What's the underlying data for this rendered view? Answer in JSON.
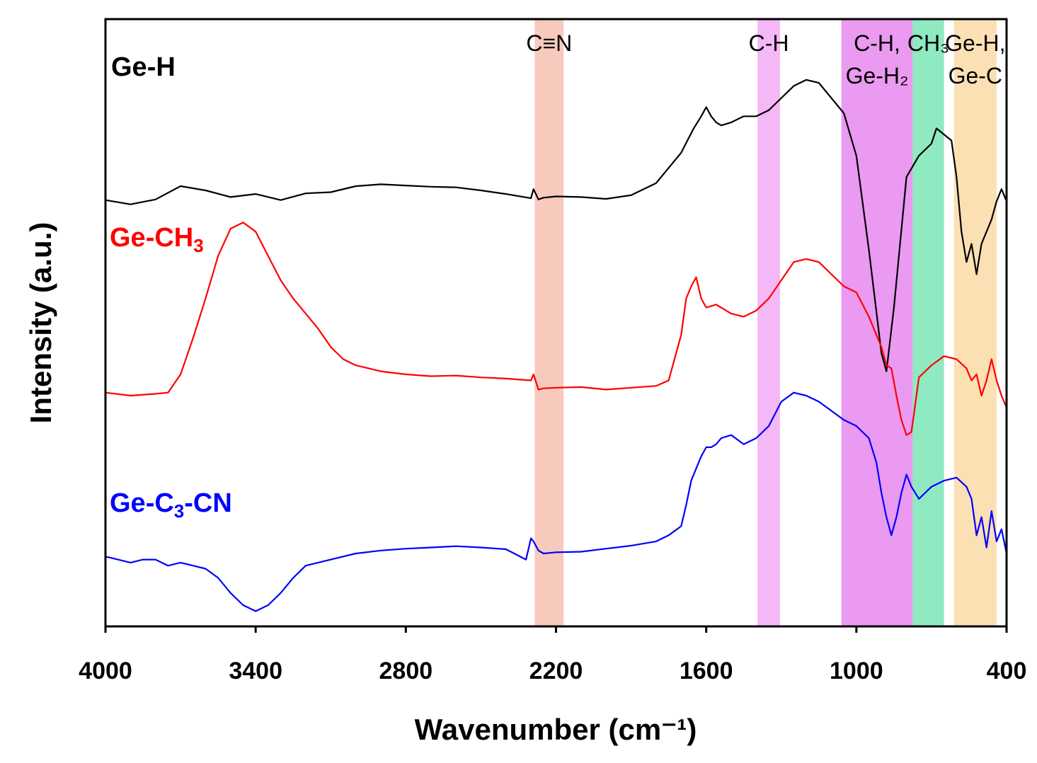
{
  "chart_data": {
    "type": "line",
    "xlabel": "Wavenumber (cm⁻¹)",
    "ylabel": "Intensity (a.u.)",
    "xlim": [
      4000,
      400
    ],
    "ylim": [
      0,
      100
    ],
    "x_ticks": [
      4000,
      3400,
      2800,
      2200,
      1600,
      1000,
      400
    ],
    "x_tick_labels": [
      "4000",
      "3400",
      "2800",
      "2200",
      "1600",
      "1000",
      "400"
    ],
    "bands": [
      {
        "name": "C≡N",
        "label_lines": [
          "C≡N"
        ],
        "x_range": [
          2285,
          2170
        ],
        "color": "#f8c9bd"
      },
      {
        "name": "C-H",
        "label_lines": [
          "C-H"
        ],
        "x_range": [
          1395,
          1305
        ],
        "color": "#f5b8f7"
      },
      {
        "name": "C-H, Ge-H2",
        "label_lines": [
          "C-H,",
          "Ge-H₂"
        ],
        "x_range": [
          1060,
          775
        ],
        "color": "#ea9af0"
      },
      {
        "name": "CH3",
        "label_lines": [
          "CH₃"
        ],
        "x_range": [
          775,
          650
        ],
        "color": "#8fe9c1"
      },
      {
        "name": "Ge-H, Ge-C",
        "label_lines": [
          "Ge-H,",
          "Ge-C"
        ],
        "x_range": [
          610,
          440
        ],
        "color": "#fbe0b4"
      }
    ],
    "series": [
      {
        "name": "Ge-H",
        "color": "#000000",
        "x": [
          4000,
          3900,
          3800,
          3700,
          3600,
          3500,
          3400,
          3300,
          3200,
          3100,
          3000,
          2900,
          2800,
          2700,
          2600,
          2500,
          2400,
          2300,
          2290,
          2270,
          2250,
          2200,
          2100,
          2000,
          1900,
          1800,
          1700,
          1650,
          1620,
          1600,
          1580,
          1560,
          1540,
          1500,
          1450,
          1400,
          1350,
          1300,
          1250,
          1200,
          1150,
          1100,
          1050,
          1000,
          950,
          900,
          880,
          850,
          800,
          750,
          700,
          680,
          650,
          620,
          600,
          580,
          560,
          540,
          520,
          500,
          480,
          460,
          440,
          420,
          400
        ],
        "values": [
          70.2,
          69.5,
          70.3,
          72.5,
          71.8,
          70.7,
          71.2,
          70.2,
          71.3,
          71.5,
          72.5,
          72.8,
          72.6,
          72.4,
          72.3,
          71.8,
          71.2,
          70.5,
          72.0,
          70.3,
          70.6,
          70.8,
          70.7,
          70.4,
          71.0,
          73.0,
          78.0,
          82.0,
          84.0,
          85.5,
          84.0,
          83.0,
          82.5,
          83.0,
          84.0,
          84.0,
          85.0,
          87.0,
          89.0,
          90.0,
          89.5,
          87.0,
          84.5,
          77.5,
          62.0,
          45.0,
          42.0,
          52.5,
          74.0,
          77.5,
          79.5,
          82.0,
          81.0,
          80.0,
          74.0,
          65.0,
          60.0,
          63.0,
          58.0,
          63.0,
          65.0,
          67.0,
          70.0,
          72.0,
          70.0
        ]
      },
      {
        "name": "Ge-CH3",
        "color": "#ff0000",
        "x": [
          4000,
          3900,
          3800,
          3750,
          3700,
          3650,
          3600,
          3550,
          3500,
          3450,
          3400,
          3350,
          3300,
          3250,
          3200,
          3150,
          3100,
          3050,
          3000,
          2900,
          2800,
          2700,
          2600,
          2500,
          2400,
          2300,
          2290,
          2270,
          2250,
          2200,
          2100,
          2000,
          1900,
          1800,
          1750,
          1700,
          1680,
          1660,
          1640,
          1620,
          1600,
          1560,
          1500,
          1450,
          1400,
          1350,
          1300,
          1250,
          1200,
          1150,
          1100,
          1050,
          1000,
          950,
          920,
          900,
          880,
          860,
          840,
          820,
          800,
          780,
          750,
          700,
          650,
          600,
          560,
          540,
          520,
          500,
          480,
          460,
          440,
          420,
          400
        ],
        "values": [
          38.5,
          38.0,
          38.3,
          38.5,
          41.5,
          47.5,
          54.0,
          61.0,
          65.5,
          66.5,
          65.0,
          61.0,
          57.0,
          54.0,
          51.5,
          49.0,
          46.0,
          44.0,
          43.0,
          42.0,
          41.5,
          41.2,
          41.3,
          41.0,
          40.8,
          40.5,
          41.5,
          39.0,
          39.2,
          39.3,
          39.4,
          39.0,
          39.3,
          39.6,
          40.5,
          48.0,
          54.0,
          56.0,
          57.5,
          54.0,
          52.5,
          53.0,
          51.5,
          51.0,
          52.0,
          54.0,
          57.0,
          60.0,
          60.5,
          60.0,
          58.0,
          56.0,
          55.0,
          51.0,
          48.0,
          46.0,
          43.0,
          42.5,
          38.0,
          34.0,
          31.5,
          32.0,
          41.0,
          43.0,
          44.5,
          44.0,
          42.5,
          40.5,
          41.5,
          38.0,
          40.5,
          44.0,
          40.5,
          38.0,
          36.0
        ]
      },
      {
        "name": "Ge-C3-CN",
        "color": "#0000ff",
        "x": [
          4000,
          3950,
          3900,
          3850,
          3800,
          3750,
          3700,
          3650,
          3600,
          3550,
          3500,
          3450,
          3400,
          3350,
          3300,
          3250,
          3200,
          3100,
          3000,
          2900,
          2800,
          2700,
          2600,
          2500,
          2400,
          2320,
          2300,
          2290,
          2270,
          2250,
          2200,
          2100,
          2000,
          1900,
          1800,
          1750,
          1700,
          1680,
          1660,
          1640,
          1620,
          1600,
          1580,
          1560,
          1540,
          1500,
          1450,
          1400,
          1350,
          1300,
          1250,
          1200,
          1150,
          1100,
          1050,
          1000,
          950,
          920,
          900,
          880,
          860,
          840,
          820,
          800,
          780,
          750,
          700,
          650,
          600,
          560,
          540,
          520,
          500,
          480,
          460,
          440,
          420,
          400
        ],
        "values": [
          11.5,
          11.0,
          10.5,
          11.0,
          11.0,
          10.0,
          10.5,
          10.0,
          9.5,
          8.0,
          5.5,
          3.5,
          2.5,
          3.5,
          5.5,
          8.0,
          10.0,
          11.0,
          12.0,
          12.5,
          12.8,
          13.0,
          13.2,
          13.0,
          12.7,
          11.0,
          14.5,
          14.0,
          12.5,
          12.0,
          12.2,
          12.3,
          12.8,
          13.3,
          14.0,
          15.0,
          16.5,
          20.0,
          24.0,
          26.0,
          28.0,
          29.5,
          29.5,
          30.0,
          31.0,
          31.5,
          30.0,
          31.0,
          33.0,
          37.0,
          38.5,
          38.0,
          37.0,
          35.5,
          34.0,
          33.0,
          31.0,
          27.0,
          22.0,
          18.0,
          15.0,
          18.0,
          22.0,
          25.0,
          23.0,
          21.0,
          23.0,
          24.0,
          24.5,
          23.0,
          21.0,
          15.0,
          18.0,
          13.0,
          19.0,
          14.0,
          16.0,
          12.0
        ]
      }
    ],
    "series_labels": [
      {
        "name": "Ge-H",
        "text": "Ge-H",
        "color": "#000000"
      },
      {
        "name": "Ge-CH3",
        "main": "Ge-CH",
        "sub": "3",
        "color": "#ff0000"
      },
      {
        "name": "Ge-C3-CN",
        "main": "Ge-C",
        "sub": "3",
        "tail": "-CN",
        "color": "#0000ff"
      }
    ]
  }
}
